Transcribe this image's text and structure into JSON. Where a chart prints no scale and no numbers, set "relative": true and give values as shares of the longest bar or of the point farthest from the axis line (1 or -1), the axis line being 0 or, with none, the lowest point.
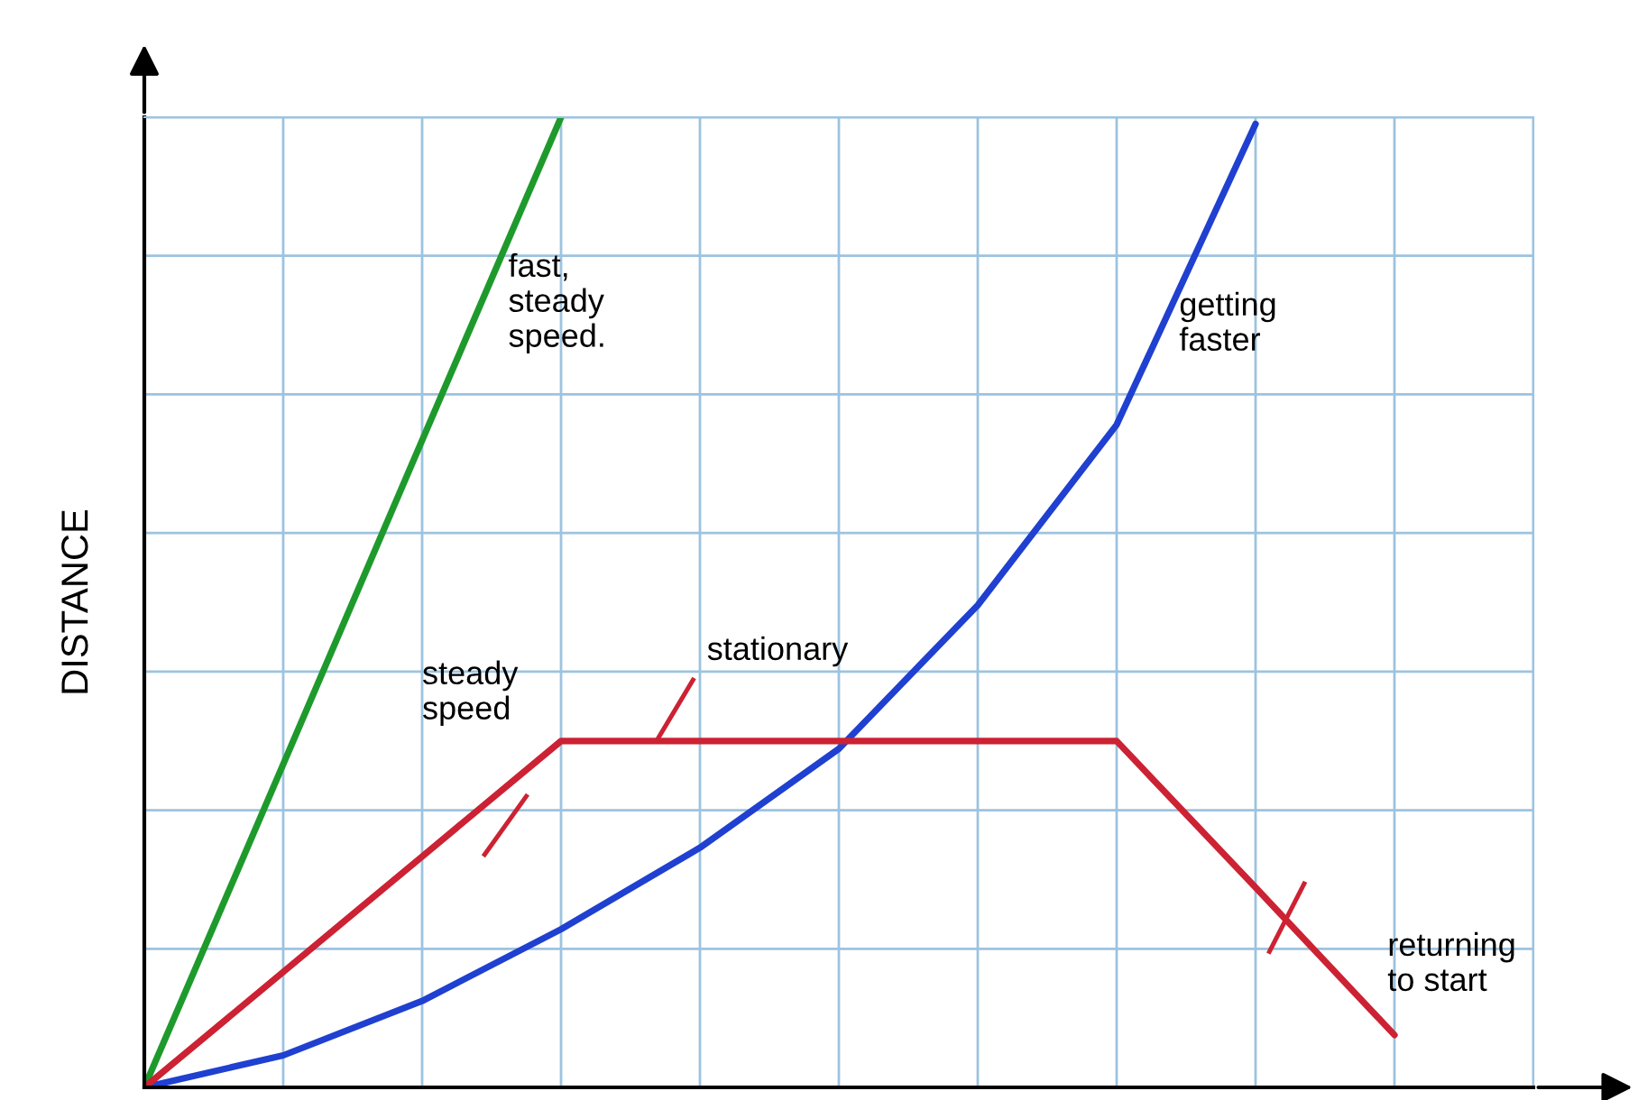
{
  "chart_data": {
    "type": "line",
    "ylabel": "DISTANCE",
    "relative": true,
    "grid": true,
    "legend": false,
    "categories": [
      null,
      null,
      null,
      null,
      null,
      null,
      null,
      null,
      null,
      null,
      null
    ],
    "series": [
      {
        "color": "#1e9a2c",
        "values": [
          0,
          0.333,
          0.667,
          1.0,
          null,
          null,
          null,
          null,
          null,
          null,
          null
        ]
      },
      {
        "color": "#1f40d0",
        "values": [
          0,
          0.033,
          0.089,
          0.163,
          0.247,
          0.349,
          0.497,
          0.683,
          0.993,
          null,
          null
        ]
      },
      {
        "color": "#cc2233",
        "values": [
          0,
          0.119,
          0.238,
          0.357,
          0.357,
          0.357,
          0.357,
          0.357,
          0.206,
          0.054,
          null
        ]
      }
    ],
    "annotations": [
      "fast,\nsteady\nspeed.",
      "getting\nfaster",
      "steady\nspeed",
      "stationary",
      "returning\nto start"
    ]
  }
}
